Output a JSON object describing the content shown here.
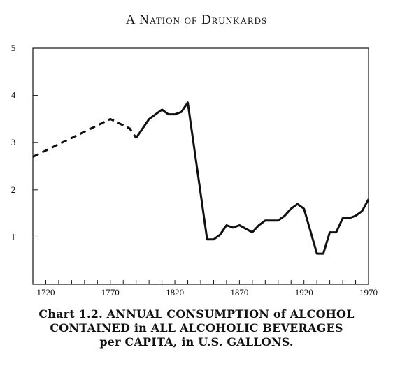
{
  "header": {
    "title": "A Nation of Drunkards"
  },
  "chart_data": {
    "type": "line",
    "title": "",
    "xlabel": "",
    "ylabel": "",
    "xlim": [
      1710,
      1970
    ],
    "ylim": [
      0,
      5
    ],
    "grid": false,
    "x_ticks": [
      1720,
      1770,
      1820,
      1870,
      1920,
      1970
    ],
    "x_minor_ticks": [
      1710,
      1720,
      1730,
      1740,
      1750,
      1760,
      1770,
      1780,
      1790,
      1800,
      1810,
      1820,
      1830,
      1840,
      1850,
      1860,
      1870,
      1880,
      1890,
      1900,
      1910,
      1920,
      1930,
      1940,
      1950,
      1960,
      1970
    ],
    "y_ticks": [
      1,
      2,
      3,
      4,
      5
    ],
    "series": [
      {
        "style": "dashed",
        "x": [
          1710,
          1770,
          1785,
          1790
        ],
        "y": [
          2.7,
          3.5,
          3.3,
          3.1
        ]
      },
      {
        "style": "solid",
        "x": [
          1790,
          1800,
          1810,
          1815,
          1820,
          1825,
          1830,
          1845,
          1850,
          1855,
          1860,
          1865,
          1870,
          1880,
          1885,
          1890,
          1900,
          1905,
          1910,
          1915,
          1920,
          1930,
          1935,
          1940,
          1945,
          1950,
          1955,
          1960,
          1965,
          1970
        ],
        "y": [
          3.1,
          3.5,
          3.7,
          3.6,
          3.6,
          3.65,
          3.85,
          0.95,
          0.95,
          1.05,
          1.25,
          1.2,
          1.25,
          1.1,
          1.25,
          1.35,
          1.35,
          1.45,
          1.6,
          1.7,
          1.6,
          0.65,
          0.65,
          1.1,
          1.1,
          1.4,
          1.4,
          1.45,
          1.55,
          1.8
        ]
      }
    ]
  },
  "caption": {
    "line1": "Chart 1.2. ANNUAL CONSUMPTION of ALCOHOL",
    "line2": "CONTAINED in ALL ALCOHOLIC BEVERAGES",
    "line3": "per CAPITA, in U.S. GALLONS."
  }
}
